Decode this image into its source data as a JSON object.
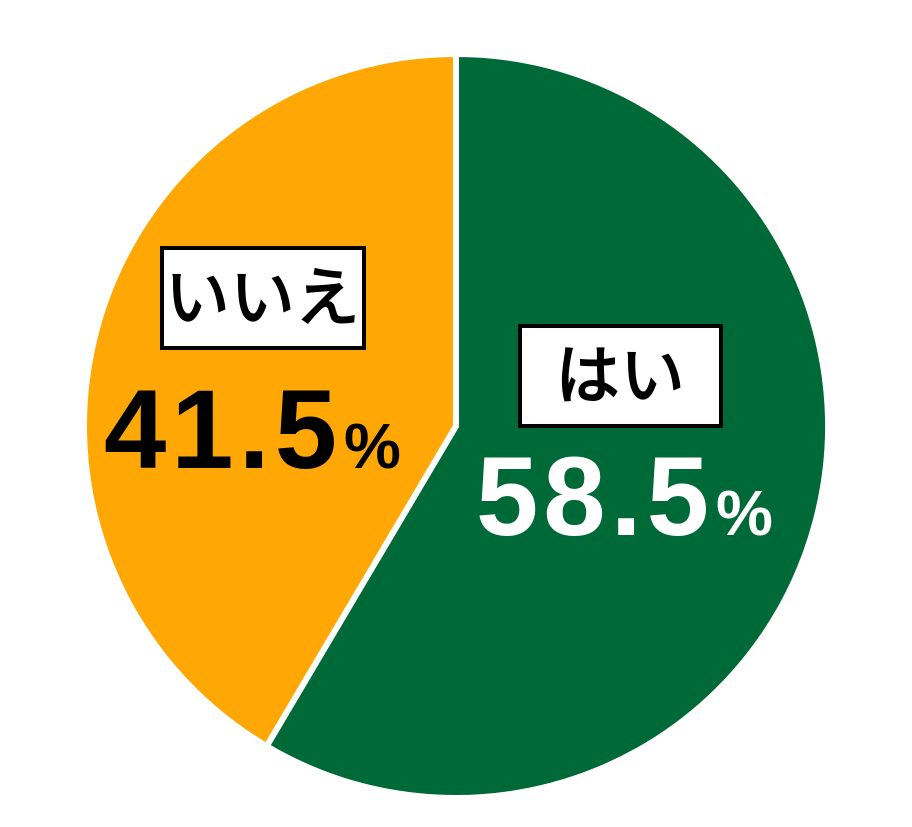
{
  "chart_data": {
    "type": "pie",
    "title": "",
    "legend_position": "none",
    "start_angle_deg": 0,
    "direction": "clockwise",
    "separator_color": "#FFFFFF",
    "background_color": "#FFFFFF",
    "slices": [
      {
        "label": "はい",
        "value": 58.5,
        "display_value": "58.5",
        "unit": "%",
        "color": "#006938",
        "value_text_color": "#FFFFFF",
        "label_box": {
          "bg": "#FFFFFF",
          "border": "#000000",
          "text_color": "#000000"
        }
      },
      {
        "label": "いいえ",
        "value": 41.5,
        "display_value": "41.5",
        "unit": "%",
        "color": "#FFA805",
        "value_text_color": "#000000",
        "label_box": {
          "bg": "#FFFFFF",
          "border": "#000000",
          "text_color": "#000000"
        }
      }
    ]
  }
}
